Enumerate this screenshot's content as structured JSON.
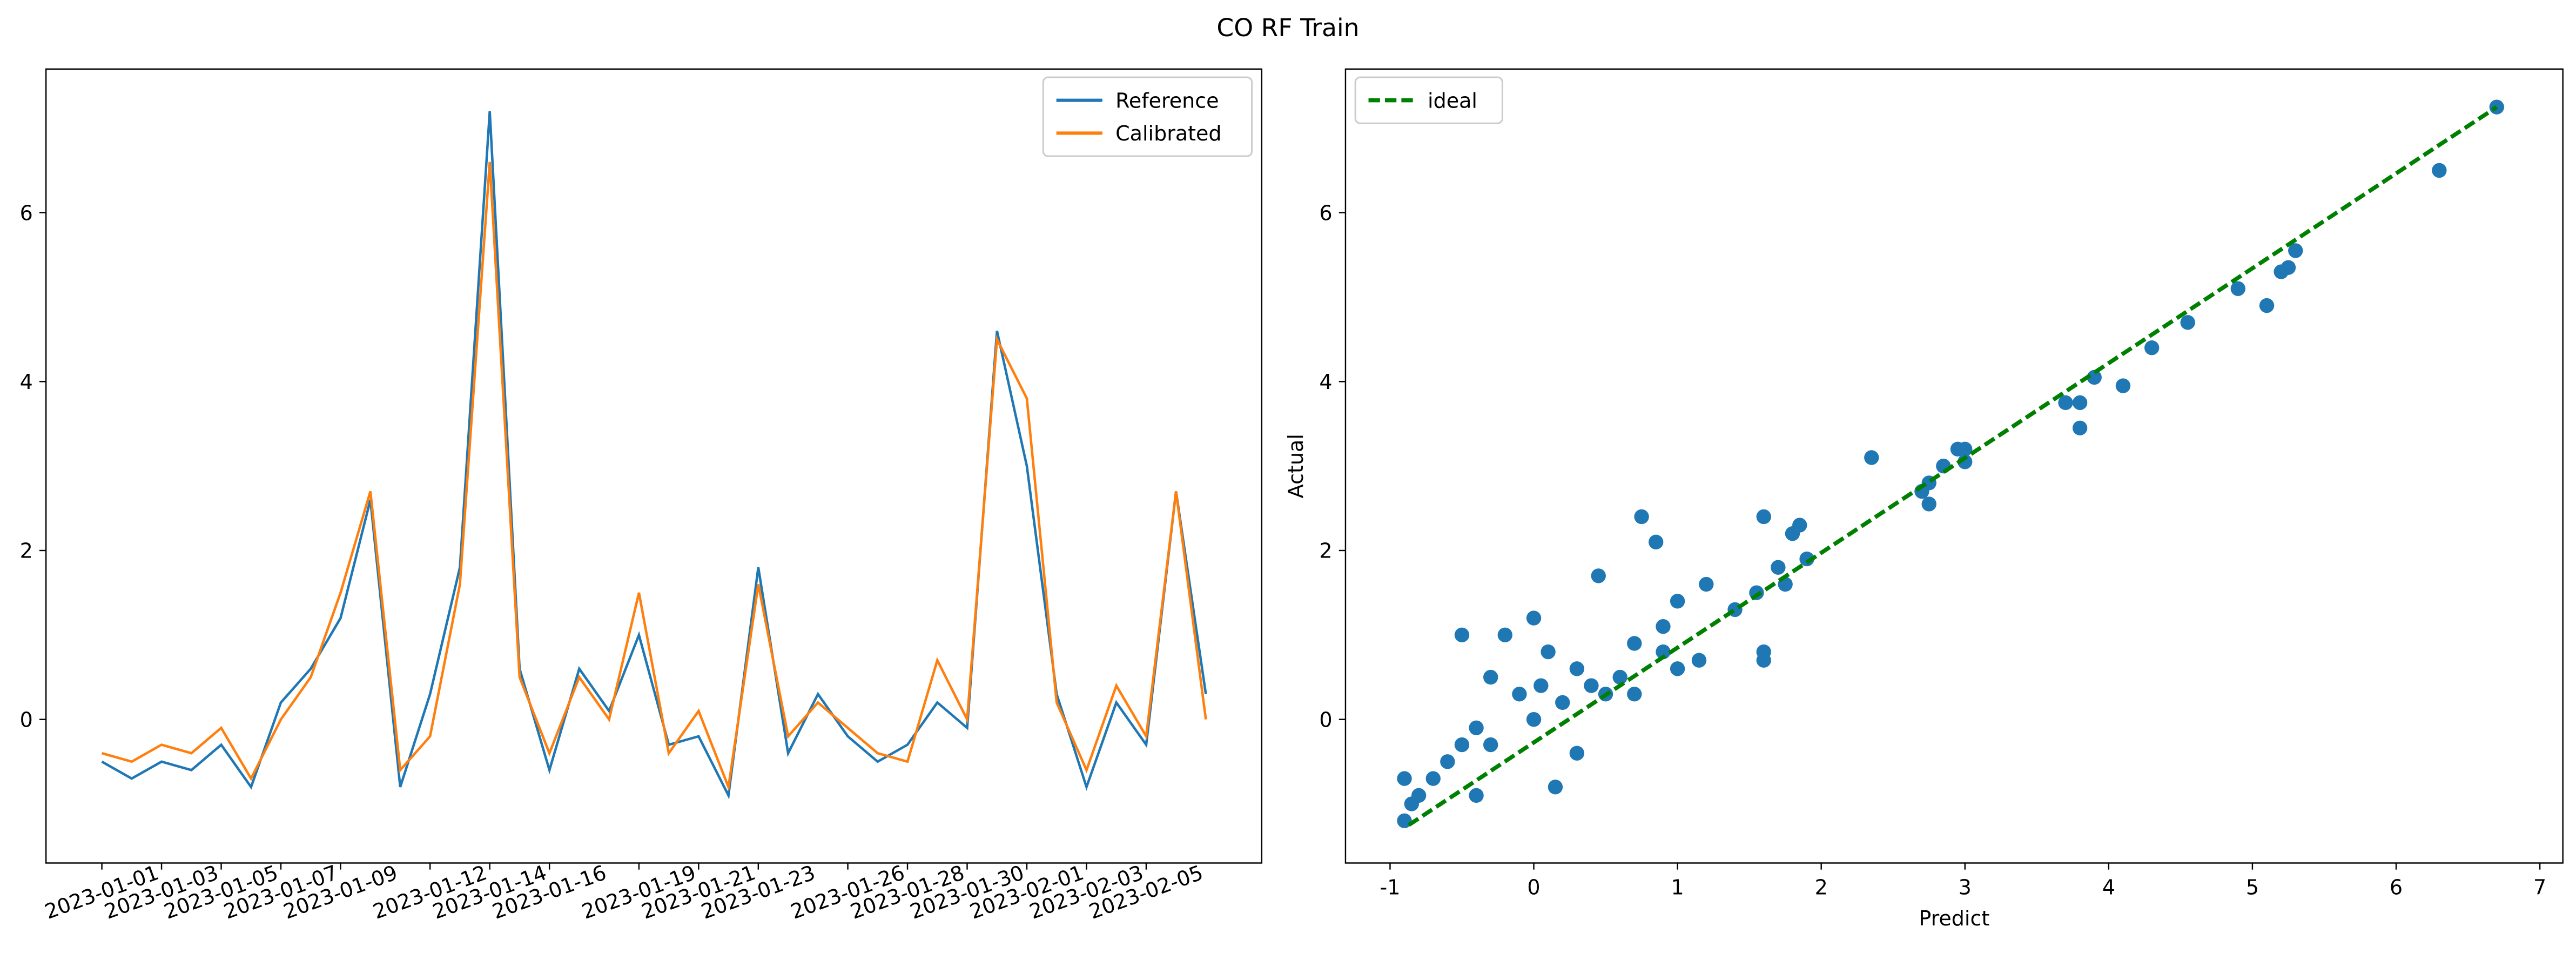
{
  "title": "CO RF Train",
  "chart_data": [
    {
      "type": "line",
      "x": [
        "2023-01-01",
        "2023-01-02",
        "2023-01-03",
        "2023-01-04",
        "2023-01-05",
        "2023-01-06",
        "2023-01-07",
        "2023-01-08",
        "2023-01-09",
        "2023-01-10",
        "2023-01-11",
        "2023-01-12",
        "2023-01-13",
        "2023-01-14",
        "2023-01-15",
        "2023-01-16",
        "2023-01-17",
        "2023-01-18",
        "2023-01-19",
        "2023-01-20",
        "2023-01-21",
        "2023-01-22",
        "2023-01-23",
        "2023-01-24",
        "2023-01-25",
        "2023-01-26",
        "2023-01-27",
        "2023-01-28",
        "2023-01-29",
        "2023-01-30",
        "2023-01-31",
        "2023-02-01",
        "2023-02-02",
        "2023-02-03",
        "2023-02-04",
        "2023-02-05",
        "2023-02-06",
        "2023-02-07"
      ],
      "series": [
        {
          "name": "Reference",
          "color": "#1f77b4",
          "values": [
            -0.5,
            -0.7,
            -0.5,
            -0.6,
            -0.3,
            -0.8,
            0.2,
            0.6,
            1.2,
            2.6,
            -0.8,
            0.3,
            1.8,
            7.2,
            0.6,
            -0.6,
            0.6,
            0.1,
            1.0,
            -0.3,
            -0.2,
            -0.9,
            1.8,
            -0.4,
            0.3,
            -0.2,
            -0.5,
            -0.3,
            0.2,
            -0.1,
            4.6,
            3.0,
            0.3,
            -0.8,
            0.2,
            -0.3,
            2.7,
            0.3
          ]
        },
        {
          "name": "Calibrated",
          "color": "#ff7f0e",
          "values": [
            -0.4,
            -0.5,
            -0.3,
            -0.4,
            -0.1,
            -0.7,
            0.0,
            0.5,
            1.5,
            2.7,
            -0.6,
            -0.2,
            1.6,
            6.6,
            0.5,
            -0.4,
            0.5,
            0.0,
            1.5,
            -0.4,
            0.1,
            -0.8,
            1.6,
            -0.2,
            0.2,
            -0.1,
            -0.4,
            -0.5,
            0.7,
            0.0,
            4.5,
            3.8,
            0.2,
            -0.6,
            0.4,
            -0.2,
            2.7,
            0.0
          ]
        }
      ],
      "xlim": [
        "2023-01-01",
        "2023-02-07"
      ],
      "xticks": [
        "2023-01-01",
        "2023-01-03",
        "2023-01-05",
        "2023-01-07",
        "2023-01-09",
        "2023-01-12",
        "2023-01-14",
        "2023-01-16",
        "2023-01-19",
        "2023-01-21",
        "2023-01-23",
        "2023-01-26",
        "2023-01-28",
        "2023-01-30",
        "2023-02-01",
        "2023-02-03",
        "2023-02-05"
      ],
      "ylim": [
        -1.7,
        7.7
      ],
      "yticks": [
        0,
        2,
        4,
        6
      ],
      "legend": "upper right"
    },
    {
      "type": "scatter",
      "xlabel": "Predict",
      "ylabel": "Actual",
      "series": [
        {
          "name": null,
          "kind": "scatter",
          "color": "#1f77b4",
          "x": [
            6.7,
            6.3,
            5.3,
            5.25,
            5.2,
            4.9,
            5.1,
            4.55,
            4.3,
            4.1,
            3.9,
            3.7,
            3.8,
            3.8,
            3.0,
            3.0,
            2.95,
            2.85,
            2.75,
            2.75,
            2.7,
            2.35,
            1.9,
            1.85,
            1.8,
            1.75,
            1.7,
            1.6,
            1.6,
            1.6,
            1.55,
            1.4,
            1.2,
            1.15,
            1.0,
            0.9,
            0.85,
            0.75,
            0.7,
            0.6,
            0.5,
            0.45,
            0.4,
            0.3,
            0.2,
            0.15,
            0.1,
            0.05,
            0.0,
            0.0,
            -0.1,
            -0.2,
            -0.3,
            -0.4,
            -0.5,
            -0.4,
            -0.6,
            -0.7,
            -0.8,
            -0.9,
            -0.9,
            -0.85,
            -0.5,
            -0.3,
            0.3,
            0.7,
            0.9,
            1.0
          ],
          "y": [
            7.25,
            6.5,
            5.55,
            5.35,
            5.3,
            5.1,
            4.9,
            4.7,
            4.4,
            3.95,
            4.05,
            3.75,
            3.75,
            3.45,
            3.2,
            3.05,
            3.2,
            3.0,
            2.8,
            2.55,
            2.7,
            3.1,
            1.9,
            2.3,
            2.2,
            1.6,
            1.8,
            2.4,
            0.8,
            0.7,
            1.5,
            1.3,
            1.6,
            0.7,
            1.4,
            1.1,
            2.1,
            2.4,
            0.9,
            0.5,
            0.3,
            1.7,
            0.4,
            0.6,
            0.2,
            -0.8,
            0.8,
            0.4,
            1.2,
            0.0,
            0.3,
            1.0,
            0.5,
            -0.1,
            1.0,
            -0.9,
            -0.5,
            -0.7,
            -0.9,
            -1.2,
            -0.7,
            -1.0,
            -0.3,
            -0.3,
            -0.4,
            0.3,
            0.8,
            0.6
          ]
        },
        {
          "name": "ideal",
          "kind": "line",
          "color": "#008000",
          "dashed": true,
          "x": [
            -0.87,
            6.7
          ],
          "y": [
            -1.25,
            7.25
          ]
        }
      ],
      "xlim": [
        -1.31,
        7.16
      ],
      "xticks": [
        -1,
        0,
        1,
        2,
        3,
        4,
        5,
        6,
        7
      ],
      "ylim": [
        -1.7,
        7.7
      ],
      "yticks": [
        0,
        2,
        4,
        6
      ],
      "legend": "upper left"
    }
  ]
}
